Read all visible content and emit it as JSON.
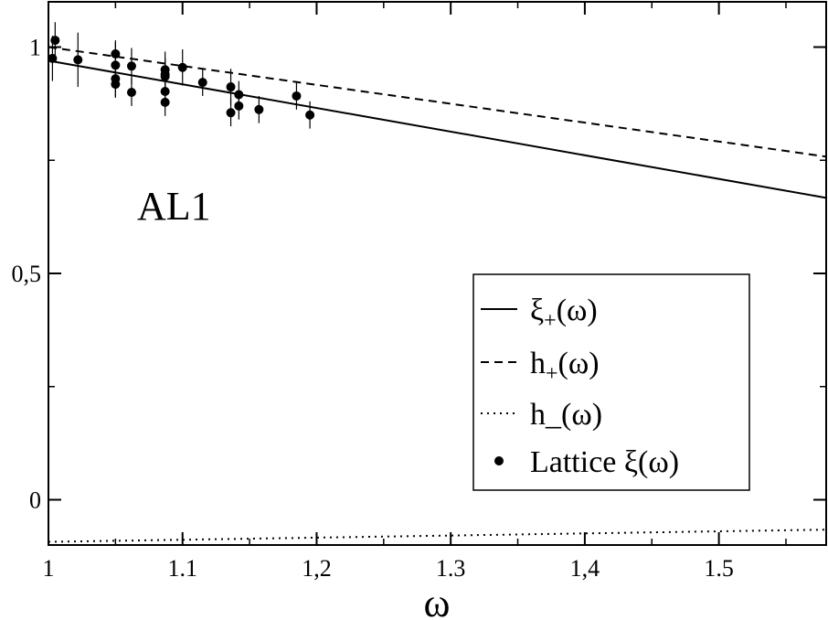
{
  "chart_data": {
    "type": "line",
    "title": "",
    "xlabel": "ω",
    "ylabel": "",
    "annotation": "AL1",
    "xlim": [
      1.0,
      1.58
    ],
    "ylim": [
      -0.1,
      1.1
    ],
    "x_ticks": [
      {
        "value": 1.0,
        "label": "1"
      },
      {
        "value": 1.1,
        "label": "1.1"
      },
      {
        "value": 1.2,
        "label": "1,2"
      },
      {
        "value": 1.3,
        "label": "1.3"
      },
      {
        "value": 1.4,
        "label": "1,4"
      },
      {
        "value": 1.5,
        "label": "1.5"
      }
    ],
    "y_ticks": [
      {
        "value": 0.0,
        "label": "0"
      },
      {
        "value": 0.5,
        "label": "0,5"
      },
      {
        "value": 1.0,
        "label": "1"
      }
    ],
    "grid": false,
    "legend_position": "bottom-right",
    "series": [
      {
        "name": "ξ",
        "subscript": "+",
        "suffix": "(ω)",
        "style": "solid",
        "x": [
          1.0,
          1.58
        ],
        "y": [
          0.97,
          0.667
        ]
      },
      {
        "name": "h",
        "subscript": "+",
        "suffix": "(ω)",
        "style": "dashed",
        "x": [
          1.0,
          1.58
        ],
        "y": [
          1.0,
          0.758
        ]
      },
      {
        "name": "h",
        "subscript": "_",
        "suffix": "(ω)",
        "style": "dotted",
        "x": [
          1.0,
          1.58
        ],
        "y": [
          -0.093,
          -0.066
        ]
      }
    ],
    "lattice": {
      "name": "Lattice ξ(ω)",
      "points": [
        {
          "x": 1.003,
          "y": 0.975,
          "err": 0.05
        },
        {
          "x": 1.005,
          "y": 1.015,
          "err": 0.04
        },
        {
          "x": 1.022,
          "y": 0.972,
          "err": 0.06
        },
        {
          "x": 1.05,
          "y": 0.985,
          "err": 0.03
        },
        {
          "x": 1.05,
          "y": 0.96,
          "err": 0.05
        },
        {
          "x": 1.05,
          "y": 0.93,
          "err": 0.04
        },
        {
          "x": 1.05,
          "y": 0.918,
          "err": 0.03
        },
        {
          "x": 1.062,
          "y": 0.958,
          "err": 0.04
        },
        {
          "x": 1.062,
          "y": 0.9,
          "err": 0.03
        },
        {
          "x": 1.087,
          "y": 0.95,
          "err": 0.04
        },
        {
          "x": 1.087,
          "y": 0.94,
          "err": 0.03
        },
        {
          "x": 1.087,
          "y": 0.935,
          "err": 0.04
        },
        {
          "x": 1.087,
          "y": 0.902,
          "err": 0.03
        },
        {
          "x": 1.087,
          "y": 0.878,
          "err": 0.03
        },
        {
          "x": 1.1,
          "y": 0.955,
          "err": 0.04
        },
        {
          "x": 1.115,
          "y": 0.922,
          "err": 0.03
        },
        {
          "x": 1.136,
          "y": 0.912,
          "err": 0.04
        },
        {
          "x": 1.136,
          "y": 0.855,
          "err": 0.03
        },
        {
          "x": 1.142,
          "y": 0.895,
          "err": 0.03
        },
        {
          "x": 1.142,
          "y": 0.87,
          "err": 0.03
        },
        {
          "x": 1.157,
          "y": 0.862,
          "err": 0.03
        },
        {
          "x": 1.185,
          "y": 0.892,
          "err": 0.03
        },
        {
          "x": 1.195,
          "y": 0.85,
          "err": 0.03
        }
      ]
    }
  }
}
